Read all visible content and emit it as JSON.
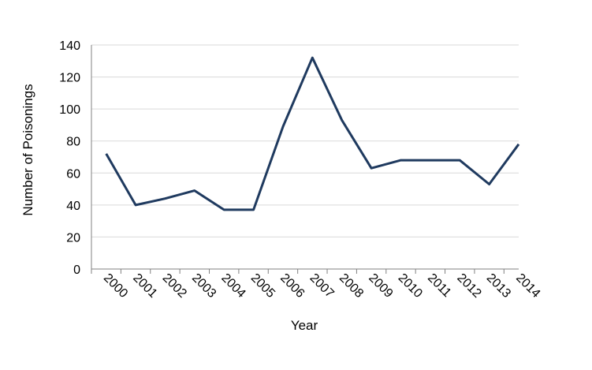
{
  "chart_data": {
    "type": "line",
    "title": "",
    "xlabel": "Year",
    "ylabel": "Number of Poisonings",
    "categories": [
      "2000",
      "2001",
      "2002",
      "2003",
      "2004",
      "2005",
      "2006",
      "2007",
      "2008",
      "2009",
      "2010",
      "2011",
      "2012",
      "2013",
      "2014"
    ],
    "series": [
      {
        "values": [
          72,
          40,
          44,
          49,
          37,
          37,
          89,
          132,
          93,
          63,
          68,
          68,
          68,
          53,
          78
        ]
      }
    ],
    "ylim": [
      0,
      140
    ],
    "yticks": [
      0,
      20,
      40,
      60,
      80,
      100,
      120,
      140
    ],
    "grid": true,
    "legend": "none",
    "colors": {
      "line": "#1f3a5f",
      "grid": "#d9d9d9",
      "axis": "#808080"
    }
  }
}
